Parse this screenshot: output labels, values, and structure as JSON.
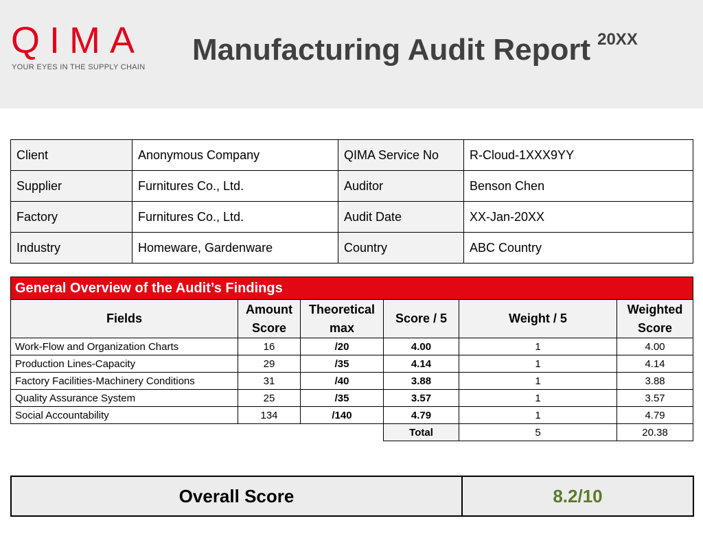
{
  "header": {
    "logo": "QIMA",
    "tagline": "YOUR EYES IN THE SUPPLY CHAIN",
    "title": "Manufacturing Audit Report",
    "year": "20XX"
  },
  "info": {
    "rows": [
      [
        "Client",
        "Anonymous Company",
        "QIMA Service No",
        "R-Cloud-1XXX9YY"
      ],
      [
        "Supplier",
        "Furnitures Co., Ltd.",
        "Auditor",
        "Benson Chen"
      ],
      [
        "Factory",
        "Furnitures Co., Ltd.",
        "Audit Date",
        "XX-Jan-20XX"
      ],
      [
        "Industry",
        "Homeware, Gardenware",
        "Country",
        "ABC Country"
      ]
    ]
  },
  "findings": {
    "title": "General Overview of the Audit’s Findings",
    "columns": [
      "Fields",
      "Amount Score",
      "Theoretical max",
      "Score / 5",
      "Weight / 5",
      "Weighted Score"
    ],
    "rows": [
      [
        "Work-Flow and Organization Charts",
        "16",
        "/20",
        "4.00",
        "1",
        "4.00"
      ],
      [
        "Production Lines-Capacity",
        "29",
        "/35",
        "4.14",
        "1",
        "4.14"
      ],
      [
        "Factory Facilities-Machinery Conditions",
        "31",
        "/40",
        "3.88",
        "1",
        "3.88"
      ],
      [
        "Quality Assurance System",
        "25",
        "/35",
        "3.57",
        "1",
        "3.57"
      ],
      [
        "Social Accountability",
        "134",
        "/140",
        "4.79",
        "1",
        "4.79"
      ]
    ],
    "total": {
      "label": "Total",
      "weight": "5",
      "weighted": "20.38"
    }
  },
  "overall": {
    "label": "Overall Score",
    "value": "8.2/10"
  }
}
